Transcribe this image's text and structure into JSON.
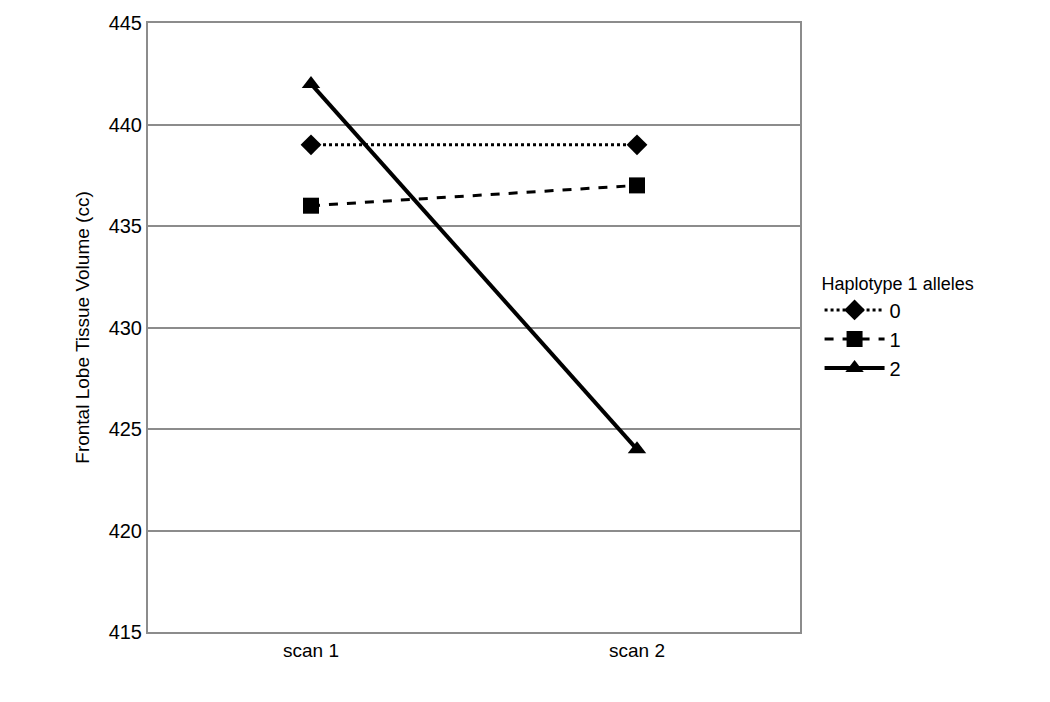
{
  "chart_data": {
    "type": "line",
    "y_label": "Frontal Lobe Tissue Volume (cc)",
    "legend_title": "Haplotype 1 alleles",
    "categories": [
      "scan 1",
      "scan 2"
    ],
    "series": [
      {
        "name": "0",
        "color": "#000000",
        "marker": "diamond",
        "line_style": "dot",
        "values": [
          439,
          439
        ]
      },
      {
        "name": "1",
        "color": "#000000",
        "marker": "square",
        "line_style": "dash",
        "values": [
          436,
          437
        ]
      },
      {
        "name": "2",
        "color": "#000000",
        "marker": "triangle-up",
        "line_style": "solid",
        "values": [
          442,
          424
        ]
      }
    ],
    "ylim": [
      415,
      445
    ],
    "yticks": [
      415,
      420,
      425,
      430,
      435,
      440,
      445
    ],
    "grid": true,
    "legend": "right"
  }
}
